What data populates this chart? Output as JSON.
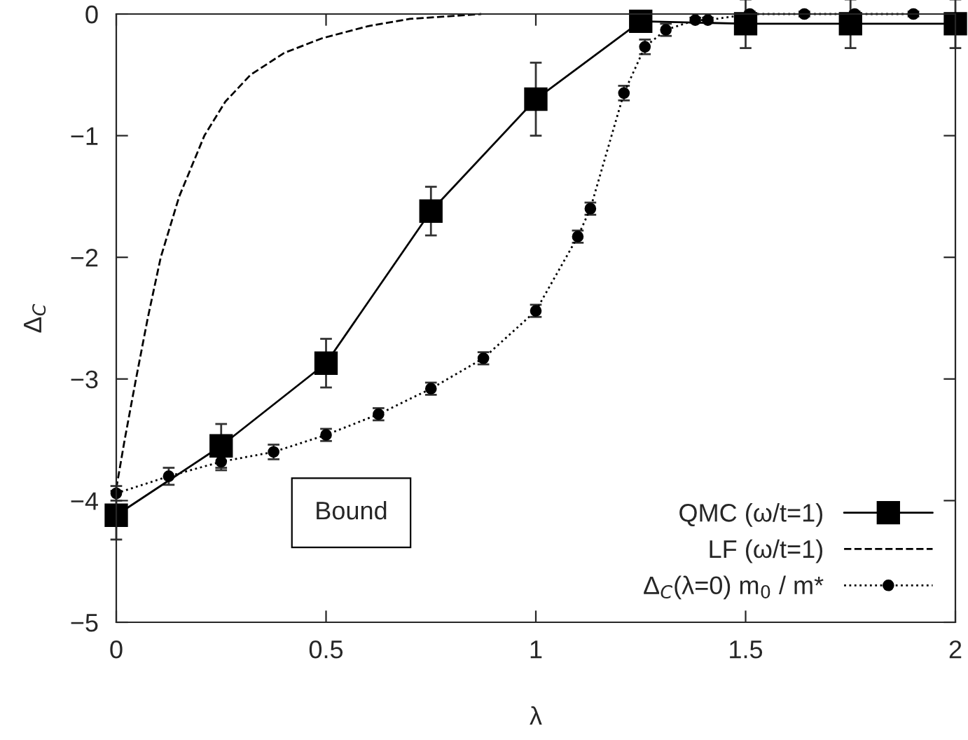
{
  "chart_data": {
    "type": "line",
    "xlabel": "λ",
    "ylabel": "Δ$_{C}$",
    "xlim": [
      0,
      2
    ],
    "ylim": [
      -5,
      0
    ],
    "xticks": [
      0,
      0.5,
      1,
      1.5,
      2
    ],
    "yticks": [
      {
        "value": -5,
        "label": "−5"
      },
      {
        "value": -4,
        "label": "−4"
      },
      {
        "value": -3,
        "label": "−3"
      },
      {
        "value": -2,
        "label": "−2"
      },
      {
        "value": -1,
        "label": "−1"
      },
      0
    ],
    "grid": false,
    "legend": "bottom right",
    "annotations": [
      "Bound"
    ],
    "series": [
      {
        "name": "QMC (ω/t=1)",
        "color": "#000000",
        "marker": "square",
        "line_style": "solid",
        "x": [
          0,
          0.25,
          0.5,
          0.75,
          1,
          1.25,
          1.5,
          1.75,
          2
        ],
        "values": [
          -4.12,
          -3.55,
          -2.87,
          -1.62,
          -0.7,
          -0.06,
          -0.08,
          -0.08,
          -0.08
        ],
        "errors": [
          0.2,
          0.18,
          0.2,
          0.2,
          0.3,
          0.05,
          0.2,
          0.2,
          0.2
        ]
      },
      {
        "name": "LF (ω/t=1)",
        "color": "#000000",
        "marker": "none",
        "line_style": "dashed",
        "x": [
          0,
          0.02,
          0.047,
          0.075,
          0.106,
          0.15,
          0.21,
          0.26,
          0.32,
          0.4,
          0.49,
          0.6,
          0.7,
          0.87
        ],
        "values": [
          -3.9,
          -3.5,
          -3.0,
          -2.5,
          -2.0,
          -1.5,
          -1.0,
          -0.72,
          -0.5,
          -0.32,
          -0.2,
          -0.1,
          -0.04,
          0
        ]
      },
      {
        "name": "Δ$_{C}$(λ=0) m$_{0}$ / m*",
        "color": "#000000",
        "marker": "circle",
        "line_style": "dotted",
        "x": [
          0,
          0.125,
          0.25,
          0.375,
          0.5,
          0.625,
          0.75,
          0.875,
          1.0,
          1.1,
          1.13,
          1.21,
          1.26,
          1.31,
          1.38,
          1.41,
          1.51,
          1.64,
          1.76,
          1.9
        ],
        "values": [
          -3.94,
          -3.8,
          -3.68,
          -3.6,
          -3.46,
          -3.29,
          -3.08,
          -2.83,
          -2.44,
          -1.83,
          -1.6,
          -0.65,
          -0.27,
          -0.13,
          -0.05,
          -0.05,
          0,
          0,
          0,
          0
        ],
        "errors": [
          0.06,
          0.07,
          0.07,
          0.06,
          0.05,
          0.05,
          0.05,
          0.05,
          0.05,
          0.05,
          0.05,
          0.06,
          0.06,
          0.05,
          0.02,
          0.02,
          0.02,
          0.02,
          0.02,
          0.02
        ]
      }
    ]
  }
}
